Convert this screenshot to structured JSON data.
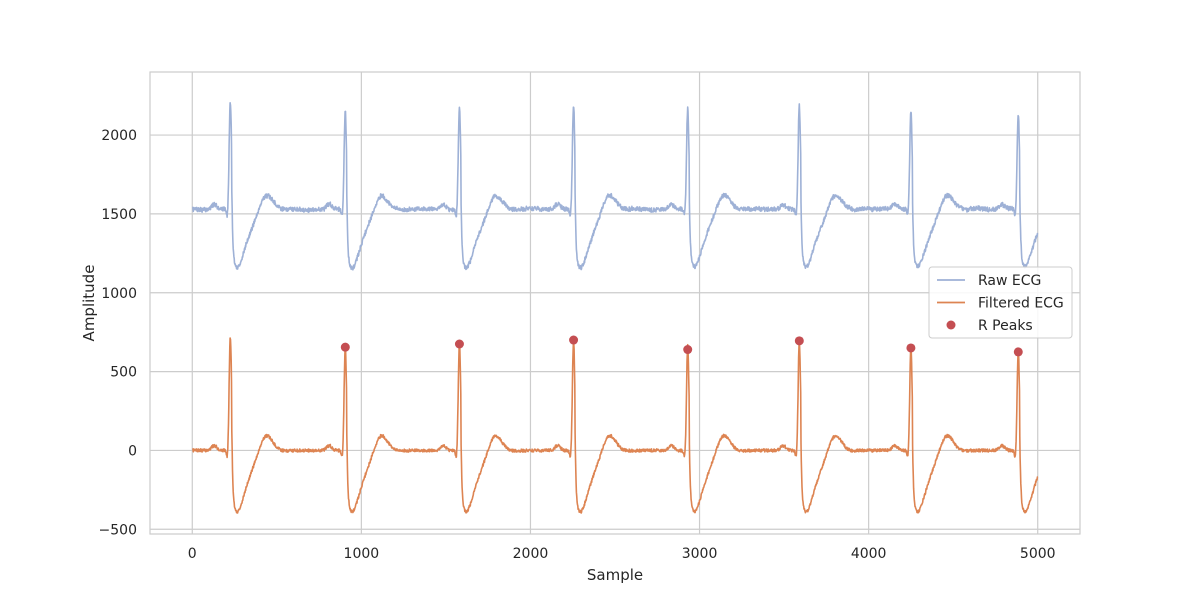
{
  "chart_data": {
    "type": "line",
    "title": "",
    "xlabel": "Sample",
    "ylabel": "Amplitude",
    "xlim": [
      -250,
      5250
    ],
    "ylim": [
      -530,
      2400
    ],
    "x_ticks": [
      0,
      1000,
      2000,
      3000,
      4000,
      5000
    ],
    "x_tick_labels": [
      "0",
      "1000",
      "2000",
      "3000",
      "4000",
      "5000"
    ],
    "y_ticks": [
      -500,
      0,
      500,
      1000,
      1500,
      2000
    ],
    "y_tick_labels": [
      "−500",
      "0",
      "500",
      "1000",
      "1500",
      "2000"
    ],
    "grid": true,
    "legend_position": "center-right",
    "n_samples": 5000,
    "beats": [
      {
        "x": 225,
        "peak": 720
      },
      {
        "x": 905,
        "peak": 660
      },
      {
        "x": 1580,
        "peak": 680
      },
      {
        "x": 2255,
        "peak": 700
      },
      {
        "x": 2930,
        "peak": 665
      },
      {
        "x": 3590,
        "peak": 695
      },
      {
        "x": 4250,
        "peak": 655
      },
      {
        "x": 4885,
        "peak": 625
      }
    ],
    "series": [
      {
        "name": "Raw ECG",
        "kind": "line",
        "color": "#9eb1d6",
        "baseline": 1530
      },
      {
        "name": "Filtered ECG",
        "kind": "line",
        "color": "#dd8452",
        "baseline": 0
      },
      {
        "name": "R Peaks",
        "kind": "scatter",
        "color": "#c44e52",
        "x": [
          905,
          1580,
          2255,
          2930,
          3590,
          4250,
          4885
        ],
        "y": [
          655,
          675,
          700,
          640,
          695,
          650,
          625
        ]
      }
    ]
  }
}
